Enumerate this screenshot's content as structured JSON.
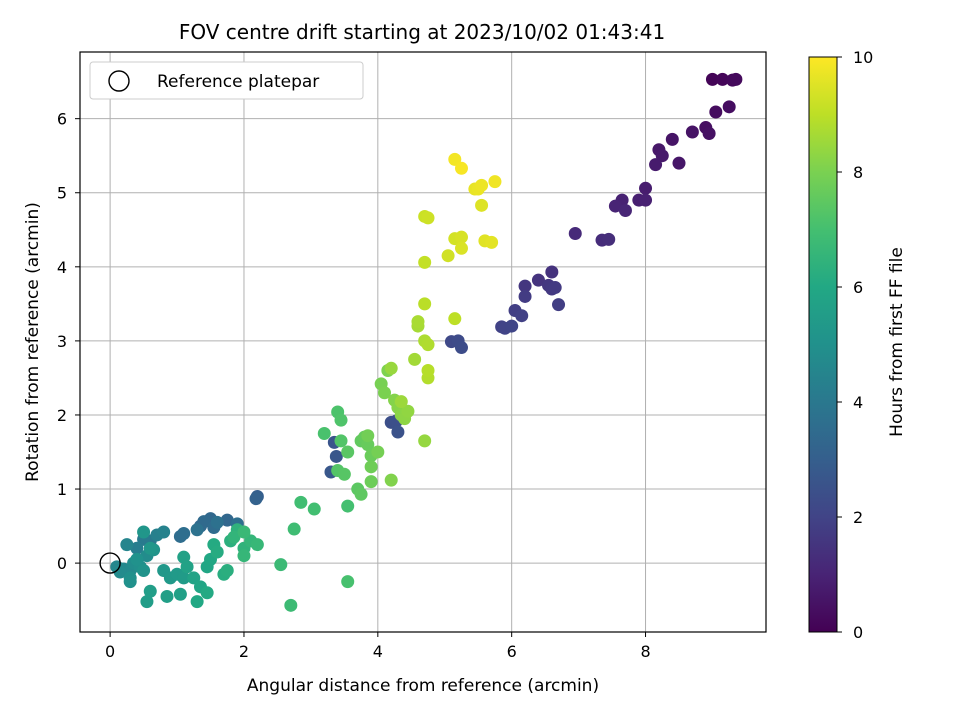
{
  "chart_data": {
    "type": "scatter",
    "title": "FOV centre drift starting at 2023/10/02 01:43:41",
    "xlabel": "Angular distance from reference (arcmin)",
    "ylabel": "Rotation from reference (arcmin)",
    "xlim": [
      -0.45,
      9.8
    ],
    "ylim": [
      -0.93,
      6.9
    ],
    "xticks": [
      0,
      2,
      4,
      6,
      8
    ],
    "yticks": [
      0,
      1,
      2,
      3,
      4,
      5,
      6
    ],
    "grid": true,
    "legend": {
      "position": "top-left",
      "entries": [
        "Reference platepar"
      ]
    },
    "reference_point": {
      "x": 0,
      "y": 0,
      "label": "Reference platepar"
    },
    "colorbar": {
      "label": "Hours from first FF file",
      "min": 0,
      "max": 10,
      "ticks": [
        0,
        2,
        4,
        6,
        8,
        10
      ],
      "colormap": "viridis"
    },
    "points": [
      [
        9.0,
        6.53,
        0.1
      ],
      [
        9.15,
        6.53,
        0.15
      ],
      [
        9.3,
        6.52,
        0.2
      ],
      [
        9.35,
        6.53,
        0.25
      ],
      [
        9.05,
        6.09,
        0.3
      ],
      [
        9.25,
        6.16,
        0.35
      ],
      [
        8.9,
        5.88,
        0.4
      ],
      [
        8.95,
        5.8,
        0.45
      ],
      [
        8.7,
        5.82,
        0.5
      ],
      [
        8.4,
        5.72,
        0.55
      ],
      [
        8.5,
        5.4,
        0.6
      ],
      [
        8.2,
        5.58,
        0.65
      ],
      [
        8.25,
        5.5,
        0.7
      ],
      [
        8.15,
        5.38,
        0.75
      ],
      [
        8.0,
        5.06,
        0.8
      ],
      [
        7.9,
        4.9,
        0.85
      ],
      [
        8.0,
        4.9,
        0.9
      ],
      [
        7.65,
        4.9,
        0.95
      ],
      [
        7.55,
        4.82,
        1.0
      ],
      [
        7.7,
        4.76,
        1.05
      ],
      [
        6.95,
        4.45,
        1.2
      ],
      [
        7.35,
        4.36,
        1.25
      ],
      [
        7.45,
        4.37,
        1.3
      ],
      [
        6.6,
        3.93,
        1.45
      ],
      [
        6.4,
        3.82,
        1.5
      ],
      [
        6.2,
        3.74,
        1.55
      ],
      [
        6.55,
        3.75,
        1.6
      ],
      [
        6.6,
        3.7,
        1.65
      ],
      [
        6.65,
        3.72,
        1.7
      ],
      [
        6.2,
        3.6,
        1.75
      ],
      [
        6.7,
        3.49,
        1.8
      ],
      [
        6.05,
        3.41,
        1.85
      ],
      [
        6.15,
        3.34,
        1.9
      ],
      [
        5.85,
        3.19,
        1.95
      ],
      [
        5.9,
        3.17,
        2.0
      ],
      [
        6.0,
        3.2,
        2.05
      ],
      [
        5.1,
        2.99,
        2.2
      ],
      [
        5.2,
        3.0,
        2.25
      ],
      [
        5.25,
        2.91,
        2.3
      ],
      [
        4.2,
        1.9,
        2.4
      ],
      [
        4.28,
        1.92,
        2.45
      ],
      [
        4.3,
        1.77,
        2.5
      ],
      [
        3.35,
        1.63,
        2.6
      ],
      [
        3.38,
        1.44,
        2.65
      ],
      [
        3.3,
        1.23,
        2.7
      ],
      [
        2.2,
        0.9,
        3.0
      ],
      [
        2.18,
        0.87,
        3.1
      ],
      [
        1.75,
        0.58,
        3.3
      ],
      [
        1.5,
        0.6,
        3.35
      ],
      [
        1.35,
        0.5,
        3.4
      ],
      [
        1.4,
        0.56,
        3.45
      ],
      [
        1.55,
        0.48,
        3.5
      ],
      [
        1.05,
        0.36,
        3.55
      ],
      [
        1.1,
        0.4,
        3.6
      ],
      [
        1.9,
        0.53,
        3.65
      ],
      [
        1.6,
        0.55,
        3.7
      ],
      [
        1.3,
        0.45,
        3.75
      ],
      [
        0.6,
        0.3,
        4.0
      ],
      [
        0.5,
        0.32,
        4.1
      ],
      [
        0.4,
        0.2,
        4.2
      ],
      [
        0.7,
        0.38,
        4.3
      ],
      [
        0.8,
        0.42,
        4.4
      ],
      [
        0.25,
        0.25,
        4.5
      ],
      [
        0.1,
        -0.05,
        4.6
      ],
      [
        0.2,
        -0.08,
        4.65
      ],
      [
        0.3,
        -0.1,
        4.7
      ],
      [
        0.15,
        -0.12,
        4.75
      ],
      [
        0.55,
        0.1,
        4.8
      ],
      [
        0.35,
        0.0,
        4.85
      ],
      [
        0.45,
        -0.05,
        4.9
      ],
      [
        0.3,
        -0.2,
        4.95
      ],
      [
        0.3,
        -0.25,
        5.0
      ],
      [
        0.4,
        0.05,
        5.05
      ],
      [
        0.5,
        -0.1,
        5.1
      ],
      [
        0.65,
        0.18,
        5.15
      ],
      [
        0.5,
        0.42,
        5.2
      ],
      [
        0.6,
        0.2,
        5.25
      ],
      [
        0.8,
        -0.1,
        5.3
      ],
      [
        0.9,
        -0.2,
        5.35
      ],
      [
        1.0,
        -0.15,
        5.4
      ],
      [
        1.1,
        -0.2,
        5.45
      ],
      [
        0.55,
        -0.52,
        5.5
      ],
      [
        0.6,
        -0.38,
        5.55
      ],
      [
        0.85,
        -0.45,
        5.6
      ],
      [
        1.05,
        -0.42,
        5.65
      ],
      [
        1.1,
        0.08,
        5.7
      ],
      [
        1.15,
        -0.05,
        5.75
      ],
      [
        1.25,
        -0.2,
        5.8
      ],
      [
        1.35,
        -0.32,
        5.85
      ],
      [
        1.45,
        -0.05,
        5.9
      ],
      [
        1.5,
        0.05,
        5.95
      ],
      [
        1.3,
        -0.52,
        6.0
      ],
      [
        1.45,
        -0.4,
        6.05
      ],
      [
        1.55,
        0.25,
        6.1
      ],
      [
        1.6,
        0.15,
        6.15
      ],
      [
        1.7,
        -0.15,
        6.2
      ],
      [
        1.75,
        -0.1,
        6.25
      ],
      [
        1.8,
        0.3,
        6.3
      ],
      [
        1.9,
        0.45,
        6.4
      ],
      [
        2.0,
        0.2,
        6.45
      ],
      [
        1.85,
        0.35,
        6.5
      ],
      [
        2.1,
        0.3,
        6.55
      ],
      [
        2.0,
        0.1,
        6.6
      ],
      [
        2.2,
        0.25,
        6.65
      ],
      [
        2.0,
        0.42,
        6.7
      ],
      [
        2.55,
        -0.02,
        6.75
      ],
      [
        2.7,
        -0.57,
        6.8
      ],
      [
        2.75,
        0.46,
        6.85
      ],
      [
        2.85,
        0.82,
        6.9
      ],
      [
        3.05,
        0.73,
        6.95
      ],
      [
        3.55,
        0.77,
        7.0
      ],
      [
        3.55,
        -0.25,
        7.05
      ],
      [
        3.2,
        1.75,
        7.1
      ],
      [
        3.4,
        2.04,
        7.15
      ],
      [
        3.45,
        1.93,
        7.2
      ],
      [
        3.45,
        1.65,
        7.25
      ],
      [
        3.4,
        1.25,
        7.3
      ],
      [
        3.5,
        1.2,
        7.35
      ],
      [
        3.55,
        1.5,
        7.4
      ],
      [
        3.7,
        1.0,
        7.45
      ],
      [
        3.75,
        0.93,
        7.5
      ],
      [
        3.75,
        1.65,
        7.55
      ],
      [
        3.8,
        1.7,
        7.6
      ],
      [
        3.85,
        1.6,
        7.65
      ],
      [
        3.9,
        1.45,
        7.7
      ],
      [
        3.9,
        1.1,
        7.75
      ],
      [
        3.9,
        1.3,
        7.8
      ],
      [
        3.85,
        1.72,
        7.85
      ],
      [
        4.0,
        1.5,
        7.9
      ],
      [
        4.05,
        2.42,
        7.95
      ],
      [
        4.1,
        2.3,
        8.0
      ],
      [
        4.15,
        2.6,
        8.05
      ],
      [
        4.2,
        1.12,
        8.1
      ],
      [
        4.25,
        2.2,
        8.15
      ],
      [
        4.3,
        2.1,
        8.2
      ],
      [
        4.35,
        2.0,
        8.25
      ],
      [
        4.4,
        1.95,
        8.3
      ],
      [
        4.45,
        2.05,
        8.35
      ],
      [
        4.7,
        1.65,
        8.4
      ],
      [
        4.2,
        2.63,
        8.45
      ],
      [
        4.35,
        2.18,
        8.5
      ],
      [
        4.55,
        2.75,
        8.6
      ],
      [
        4.6,
        3.2,
        8.65
      ],
      [
        4.6,
        3.26,
        8.7
      ],
      [
        4.7,
        3.0,
        8.75
      ],
      [
        4.75,
        2.95,
        8.8
      ],
      [
        4.75,
        2.5,
        8.85
      ],
      [
        4.75,
        2.6,
        8.9
      ],
      [
        4.7,
        3.5,
        8.95
      ],
      [
        5.15,
        3.3,
        9.0
      ],
      [
        4.7,
        4.06,
        9.1
      ],
      [
        4.7,
        4.68,
        9.2
      ],
      [
        4.75,
        4.66,
        9.25
      ],
      [
        5.05,
        4.15,
        9.3
      ],
      [
        5.15,
        4.38,
        9.35
      ],
      [
        5.25,
        4.4,
        9.4
      ],
      [
        5.25,
        4.25,
        9.45
      ],
      [
        5.55,
        4.83,
        9.5
      ],
      [
        5.6,
        4.35,
        9.55
      ],
      [
        5.7,
        4.33,
        9.6
      ],
      [
        5.45,
        5.05,
        9.65
      ],
      [
        5.5,
        5.05,
        9.7
      ],
      [
        5.55,
        5.1,
        9.75
      ],
      [
        5.75,
        5.15,
        9.8
      ],
      [
        5.15,
        5.45,
        9.85
      ],
      [
        5.25,
        5.33,
        9.9
      ]
    ]
  }
}
